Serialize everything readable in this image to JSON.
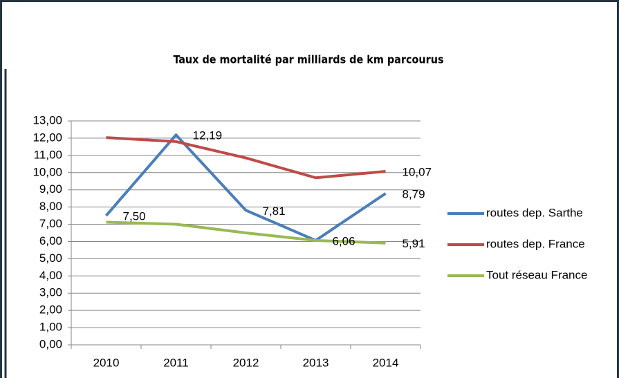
{
  "chart_data": {
    "type": "line",
    "title": "Taux de mortalité par milliards de km parcourus",
    "categories": [
      "2010",
      "2011",
      "2012",
      "2013",
      "2014"
    ],
    "series": [
      {
        "name": "routes dep. Sarthe",
        "color": "#4a7ebb",
        "values": [
          7.5,
          12.19,
          7.81,
          6.06,
          8.79
        ],
        "value_labels": [
          "7,50",
          "12,19",
          "7,81",
          "6,06",
          "8,79"
        ]
      },
      {
        "name": "routes dep. France",
        "color": "#be4b48",
        "values": [
          12.03,
          11.8,
          10.85,
          9.7,
          10.07
        ],
        "value_labels": [
          null,
          null,
          null,
          null,
          "10,07"
        ]
      },
      {
        "name": "Tout réseau France",
        "color": "#98b954",
        "values": [
          7.12,
          7.0,
          6.5,
          6.06,
          5.91
        ],
        "value_labels": [
          null,
          null,
          null,
          null,
          "5,91"
        ]
      }
    ],
    "ylim": [
      0,
      13
    ],
    "yticks": [
      {
        "value": 0,
        "label": "0,00"
      },
      {
        "value": 1,
        "label": "1,00"
      },
      {
        "value": 2,
        "label": "2,00"
      },
      {
        "value": 3,
        "label": "3,00"
      },
      {
        "value": 4,
        "label": "4,00"
      },
      {
        "value": 5,
        "label": "5,00"
      },
      {
        "value": 6,
        "label": "6,00"
      },
      {
        "value": 7,
        "label": "7,00"
      },
      {
        "value": 8,
        "label": "8,00"
      },
      {
        "value": 9,
        "label": "9,00"
      },
      {
        "value": 10,
        "label": "10,00"
      },
      {
        "value": 11,
        "label": "11,00"
      },
      {
        "value": 12,
        "label": "12,00"
      },
      {
        "value": 13,
        "label": "13,00"
      }
    ],
    "grid": true,
    "legend": "right"
  }
}
